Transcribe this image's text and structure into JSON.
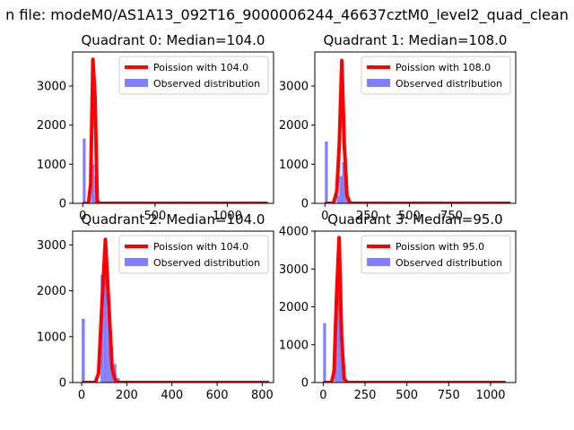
{
  "figure": {
    "suptitle": "n file: modeM0/AS1A13_092T16_9000006244_46637cztM0_level2_quad_clean"
  },
  "colors": {
    "poisson": "#ff0000",
    "observed": "#8080ff",
    "axes": "#000000"
  },
  "chart_data": [
    {
      "type": "bar",
      "title": "Quadrant 0: Median=104.0",
      "xlim": [
        -70,
        1320
      ],
      "ylim": [
        0,
        3870
      ],
      "xticks": [
        0,
        500,
        1000
      ],
      "yticks": [
        0,
        1000,
        2000,
        3000
      ],
      "xticklabels": [
        "0",
        "500",
        "1000"
      ],
      "yticklabels": [
        "0",
        "1000",
        "2000",
        "3000"
      ],
      "legend": {
        "placement": "top-right",
        "entries": [
          "Poission with 104.0",
          "Observed distribution"
        ]
      },
      "observed": {
        "name": "Observed distribution",
        "bin_width": 20,
        "bins": [
          [
            0,
            1660
          ],
          [
            60,
            1000
          ],
          [
            80,
            700
          ],
          [
            100,
            100
          ]
        ]
      },
      "poisson": {
        "name": "Poission with 104.0",
        "x": [
          0,
          40,
          55,
          70,
          85,
          100,
          115,
          130,
          1280
        ],
        "y": [
          0,
          0,
          500,
          3680,
          2700,
          20,
          0,
          0,
          0
        ]
      }
    },
    {
      "type": "bar",
      "title": "Quadrant 1: Median=108.0",
      "xlim": [
        -60,
        1130
      ],
      "ylim": [
        0,
        3870
      ],
      "xticks": [
        0,
        250,
        500,
        750
      ],
      "yticks": [
        0,
        1000,
        2000,
        3000
      ],
      "xticklabels": [
        "0",
        "250",
        "500",
        "750"
      ],
      "yticklabels": [
        "0",
        "1000",
        "2000",
        "3000"
      ],
      "legend": {
        "placement": "top-right",
        "entries": [
          "Poission with 108.0",
          "Observed distribution"
        ]
      },
      "observed": {
        "name": "Observed distribution",
        "bin_width": 17,
        "bins": [
          [
            0,
            1580
          ],
          [
            70,
            200
          ],
          [
            85,
            700
          ],
          [
            102,
            1050
          ],
          [
            119,
            700
          ],
          [
            136,
            60
          ]
        ]
      },
      "poisson": {
        "name": "Poission with 108.0",
        "x": [
          0,
          50,
          70,
          85,
          100,
          115,
          130,
          150,
          170,
          1100
        ],
        "y": [
          0,
          0,
          300,
          1500,
          3650,
          1500,
          200,
          0,
          0,
          0
        ]
      }
    },
    {
      "type": "bar",
      "title": "Quadrant 2: Median=104.0",
      "xlim": [
        -40,
        850
      ],
      "ylim": [
        0,
        3300
      ],
      "xticks": [
        0,
        200,
        400,
        600,
        800
      ],
      "yticks": [
        0,
        1000,
        2000,
        3000
      ],
      "xticklabels": [
        "0",
        "200",
        "400",
        "600",
        "800"
      ],
      "yticklabels": [
        "0",
        "1000",
        "2000",
        "3000"
      ],
      "legend": {
        "placement": "top-right",
        "entries": [
          "Poission with 104.0",
          "Observed distribution"
        ]
      },
      "observed": {
        "name": "Observed distribution",
        "bin_width": 14,
        "bins": [
          [
            0,
            1390
          ],
          [
            84,
            2350
          ],
          [
            98,
            2650
          ],
          [
            112,
            1550
          ],
          [
            126,
            800
          ],
          [
            140,
            400
          ],
          [
            154,
            100
          ]
        ]
      },
      "poisson": {
        "name": "Poission with 104.0",
        "x": [
          0,
          60,
          75,
          90,
          105,
          120,
          135,
          150,
          170,
          830
        ],
        "y": [
          0,
          0,
          200,
          1700,
          3120,
          1700,
          300,
          30,
          0,
          0
        ]
      }
    },
    {
      "type": "bar",
      "title": "Quadrant 3: Median=95.0",
      "xlim": [
        -50,
        1150
      ],
      "ylim": [
        0,
        4000
      ],
      "xticks": [
        0,
        250,
        500,
        750,
        1000
      ],
      "yticks": [
        0,
        1000,
        2000,
        3000,
        4000
      ],
      "xticklabels": [
        "0",
        "250",
        "500",
        "750",
        "1000"
      ],
      "yticklabels": [
        "0",
        "1000",
        "2000",
        "3000",
        "4000"
      ],
      "legend": {
        "placement": "top-right",
        "entries": [
          "Poission with 95.0",
          "Observed distribution"
        ]
      },
      "observed": {
        "name": "Observed distribution",
        "bin_width": 17,
        "bins": [
          [
            0,
            1570
          ],
          [
            68,
            1980
          ],
          [
            85,
            2300
          ],
          [
            102,
            1300
          ],
          [
            119,
            200
          ]
        ]
      },
      "poisson": {
        "name": "Poission with 95.0",
        "x": [
          0,
          50,
          65,
          80,
          95,
          110,
          125,
          145,
          1090
        ],
        "y": [
          0,
          0,
          300,
          2300,
          3830,
          1200,
          100,
          0,
          0
        ]
      }
    }
  ]
}
